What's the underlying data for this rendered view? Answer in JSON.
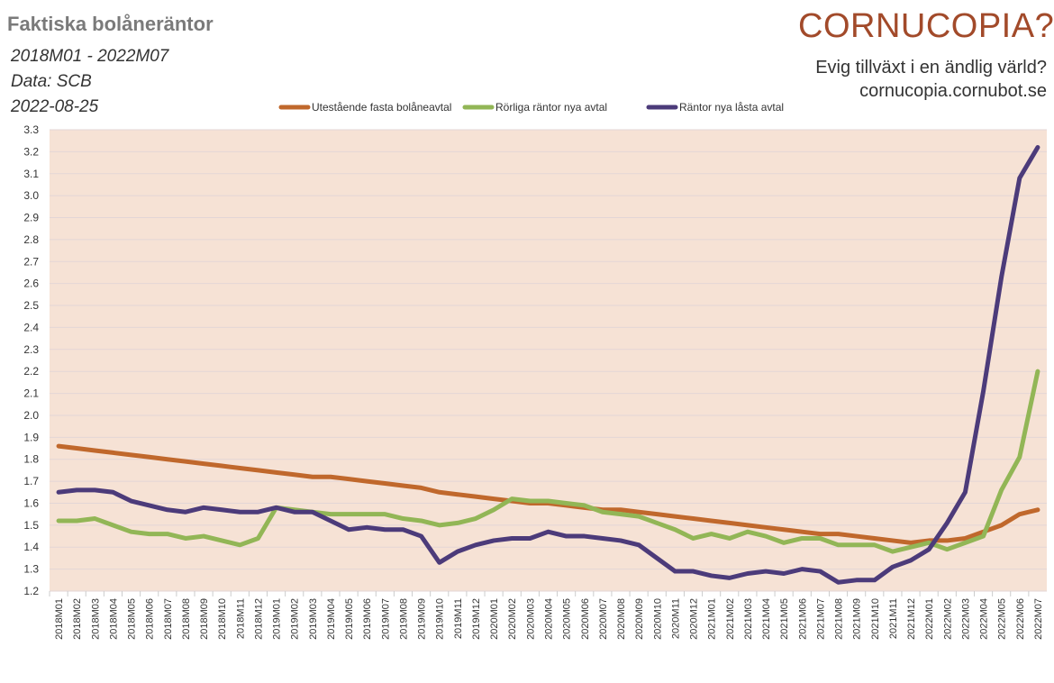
{
  "header": {
    "title": "Faktiska bolåneräntor",
    "period": "2018M01 - 2022M07",
    "source": "Data: SCB",
    "date": "2022-08-25"
  },
  "logo": {
    "name": "CORNUCOPIA?",
    "tagline": "Evig tillväxt i en ändlig värld?",
    "url": "cornucopia.cornubot.se"
  },
  "chart_data": {
    "type": "line",
    "title": "Faktiska bolåneräntor",
    "xlabel": "",
    "ylabel": "",
    "ylim": [
      1.2,
      3.3
    ],
    "yticks": [
      "1.2",
      "1.3",
      "1.4",
      "1.5",
      "1.6",
      "1.7",
      "1.8",
      "1.9",
      "2.0",
      "2.1",
      "2.2",
      "2.3",
      "2.4",
      "2.5",
      "2.6",
      "2.7",
      "2.8",
      "2.9",
      "3.0",
      "3.1",
      "3.2",
      "3.3"
    ],
    "grid": true,
    "legend": "top-center",
    "x": [
      "2018M01",
      "2018M02",
      "2018M03",
      "2018M04",
      "2018M05",
      "2018M06",
      "2018M07",
      "2018M08",
      "2018M09",
      "2018M10",
      "2018M11",
      "2018M12",
      "2019M01",
      "2019M02",
      "2019M03",
      "2019M04",
      "2019M05",
      "2019M06",
      "2019M07",
      "2019M08",
      "2019M09",
      "2019M10",
      "2019M11",
      "2019M12",
      "2020M01",
      "2020M02",
      "2020M03",
      "2020M04",
      "2020M05",
      "2020M06",
      "2020M07",
      "2020M08",
      "2020M09",
      "2020M10",
      "2020M11",
      "2020M12",
      "2021M01",
      "2021M02",
      "2021M03",
      "2021M04",
      "2021M05",
      "2021M06",
      "2021M07",
      "2021M08",
      "2021M09",
      "2021M10",
      "2021M11",
      "2021M12",
      "2022M01",
      "2022M02",
      "2022M03",
      "2022M04",
      "2022M05",
      "2022M06",
      "2022M07"
    ],
    "series": [
      {
        "name": "Utestående fasta bolåneavtal",
        "color": "#c0682c",
        "values": [
          1.86,
          1.85,
          1.84,
          1.83,
          1.82,
          1.81,
          1.8,
          1.79,
          1.78,
          1.77,
          1.76,
          1.75,
          1.74,
          1.73,
          1.72,
          1.72,
          1.71,
          1.7,
          1.69,
          1.68,
          1.67,
          1.65,
          1.64,
          1.63,
          1.62,
          1.61,
          1.6,
          1.6,
          1.59,
          1.58,
          1.57,
          1.57,
          1.56,
          1.55,
          1.54,
          1.53,
          1.52,
          1.51,
          1.5,
          1.49,
          1.48,
          1.47,
          1.46,
          1.46,
          1.45,
          1.44,
          1.43,
          1.42,
          1.43,
          1.43,
          1.44,
          1.47,
          1.5,
          1.55,
          1.57
        ]
      },
      {
        "name": "Rörliga räntor nya avtal",
        "color": "#92b656",
        "values": [
          1.52,
          1.52,
          1.53,
          1.5,
          1.47,
          1.46,
          1.46,
          1.44,
          1.45,
          1.43,
          1.41,
          1.44,
          1.58,
          1.57,
          1.56,
          1.55,
          1.55,
          1.55,
          1.55,
          1.53,
          1.52,
          1.5,
          1.51,
          1.53,
          1.57,
          1.62,
          1.61,
          1.61,
          1.6,
          1.59,
          1.56,
          1.55,
          1.54,
          1.51,
          1.48,
          1.44,
          1.46,
          1.44,
          1.47,
          1.45,
          1.42,
          1.44,
          1.44,
          1.41,
          1.41,
          1.41,
          1.38,
          1.4,
          1.42,
          1.39,
          1.42,
          1.45,
          1.66,
          1.81,
          2.2
        ]
      },
      {
        "name": "Räntor nya låsta avtal",
        "color": "#4c3b7a",
        "values": [
          1.65,
          1.66,
          1.66,
          1.65,
          1.61,
          1.59,
          1.57,
          1.56,
          1.58,
          1.57,
          1.56,
          1.56,
          1.58,
          1.56,
          1.56,
          1.52,
          1.48,
          1.49,
          1.48,
          1.48,
          1.45,
          1.33,
          1.38,
          1.41,
          1.43,
          1.44,
          1.44,
          1.47,
          1.45,
          1.45,
          1.44,
          1.43,
          1.41,
          1.35,
          1.29,
          1.29,
          1.27,
          1.26,
          1.28,
          1.29,
          1.28,
          1.3,
          1.29,
          1.24,
          1.25,
          1.25,
          1.31,
          1.34,
          1.39,
          1.51,
          1.65,
          2.11,
          2.63,
          3.08,
          3.22
        ]
      }
    ]
  }
}
